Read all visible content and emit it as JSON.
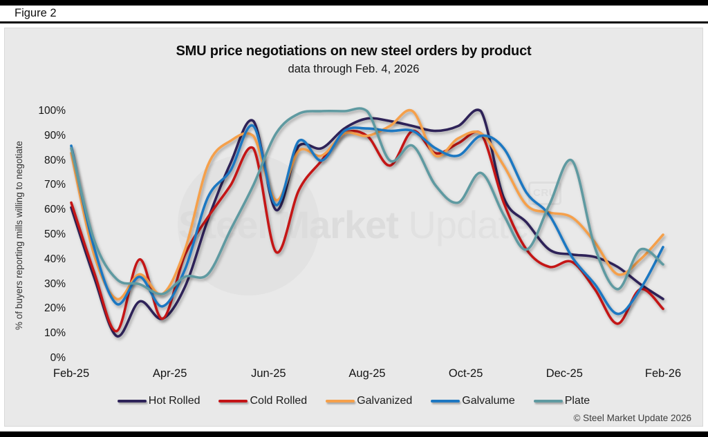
{
  "figure_label": "Figure 2",
  "copyright": "© Steel Market Update 2026",
  "watermark": {
    "text_bold": "Steel Market",
    "text_light": "Update",
    "badge": "CRU"
  },
  "panel_background": "#e9e9e9",
  "chart_data": {
    "type": "line",
    "title": "SMU price negotiations on new steel orders by product",
    "subtitle": "data through Feb. 4, 2026",
    "ylabel": "% of buyers reporting mills willing to negotiate",
    "ylim": [
      0,
      100
    ],
    "grid": false,
    "legend_position": "bottom",
    "y_ticks": [
      "0%",
      "10%",
      "20%",
      "30%",
      "40%",
      "50%",
      "60%",
      "70%",
      "80%",
      "90%",
      "100%"
    ],
    "x_tick_labels": [
      "Feb-25",
      "Apr-25",
      "Jun-25",
      "Aug-25",
      "Oct-25",
      "Dec-25",
      "Feb-26"
    ],
    "series": [
      {
        "name": "Hot Rolled",
        "color": "#2e2359",
        "values": [
          61,
          33,
          9,
          23,
          16,
          29,
          56,
          79,
          96,
          60,
          86,
          85,
          93,
          97,
          96,
          94,
          92,
          94,
          100,
          65,
          55,
          44,
          42,
          41,
          37,
          30,
          24
        ]
      },
      {
        "name": "Cold Rolled",
        "color": "#c41417",
        "values": [
          63,
          35,
          11,
          40,
          16,
          42,
          57,
          70,
          85,
          43,
          68,
          80,
          91,
          90,
          78,
          92,
          83,
          87,
          91,
          63,
          44,
          37,
          39,
          28,
          14,
          28,
          20
        ]
      },
      {
        "name": "Galvanized",
        "color": "#f5a04b",
        "values": [
          83,
          42,
          24,
          34,
          26,
          44,
          78,
          88,
          90,
          64,
          84,
          82,
          91,
          90,
          94,
          100,
          82,
          89,
          91,
          78,
          62,
          59,
          57,
          47,
          34,
          40,
          50
        ]
      },
      {
        "name": "Galvalume",
        "color": "#1e78c2",
        "values": [
          86,
          45,
          22,
          33,
          21,
          36,
          65,
          76,
          94,
          62,
          88,
          80,
          92,
          93,
          92,
          92,
          85,
          82,
          90,
          85,
          67,
          58,
          41,
          30,
          18,
          28,
          45
        ]
      },
      {
        "name": "Plate",
        "color": "#5f9aa1",
        "values": [
          85,
          48,
          32,
          30,
          26,
          33,
          34,
          52,
          70,
          91,
          99,
          100,
          100,
          100,
          80,
          86,
          70,
          63,
          75,
          58,
          44,
          62,
          80,
          45,
          28,
          44,
          38
        ]
      }
    ]
  }
}
